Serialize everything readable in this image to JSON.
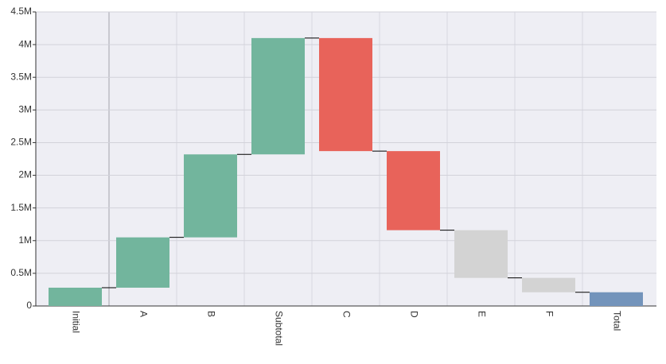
{
  "chart_data": {
    "type": "waterfall",
    "categories": [
      "Initial",
      "A",
      "B",
      "Subtotal",
      "C",
      "D",
      "E",
      "F",
      "Total"
    ],
    "values": [
      280000,
      770000,
      1270000,
      1780000,
      -1730000,
      -1210000,
      -730000,
      -220000,
      210000
    ],
    "bar_kinds": [
      "delta",
      "delta",
      "delta",
      "delta",
      "delta",
      "delta",
      "delta",
      "delta",
      "total"
    ],
    "colors": [
      "#72b59d",
      "#72b59d",
      "#72b59d",
      "#72b59d",
      "#e8635a",
      "#e8635a",
      "#d3d3d3",
      "#d3d3d3",
      "#7394bb"
    ],
    "ylim": [
      0,
      4500000
    ],
    "yticks": [
      0,
      {
        "value": 500000,
        "label": "0.5M"
      },
      {
        "value": 1000000,
        "label": "1M"
      },
      {
        "value": 1500000,
        "label": "1.5M"
      },
      {
        "value": 2000000,
        "label": "2M"
      },
      {
        "value": 2500000,
        "label": "2.5M"
      },
      {
        "value": 3000000,
        "label": "3M"
      },
      {
        "value": 3500000,
        "label": "3.5M"
      },
      {
        "value": 4000000,
        "label": "4M"
      },
      {
        "value": 4500000,
        "label": "4.5M"
      }
    ],
    "grid": true
  }
}
